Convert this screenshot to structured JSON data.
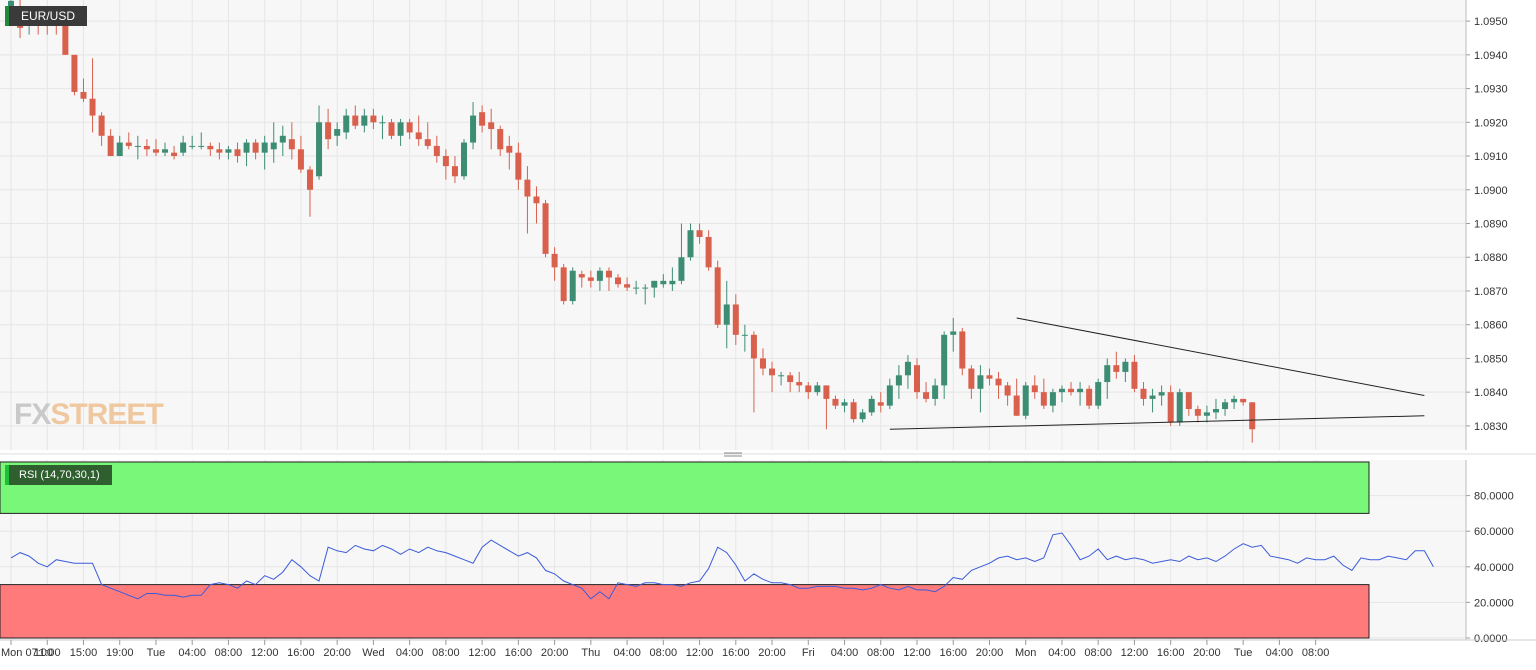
{
  "symbol": "EUR/USD",
  "rsi_label": "RSI (14,70,30,1)",
  "watermark": {
    "part1": "FX",
    "part2": "STREET"
  },
  "colors": {
    "up": "#3d8d74",
    "down": "#d9604c",
    "rsi_line": "#3b5bdb",
    "overbought": "#79f779",
    "oversold": "#ff7b7b",
    "grid": "#e6e6e6",
    "background": "#f7f7f7"
  },
  "price_axis": {
    "ticks": [
      "1.0950",
      "1.0940",
      "1.0930",
      "1.0920",
      "1.0910",
      "1.0900",
      "1.0890",
      "1.0880",
      "1.0870",
      "1.0860",
      "1.0850",
      "1.0840",
      "1.0830"
    ],
    "tick_values": [
      1.095,
      1.094,
      1.093,
      1.092,
      1.091,
      1.09,
      1.089,
      1.088,
      1.087,
      1.086,
      1.085,
      1.084,
      1.083
    ]
  },
  "rsi_axis": {
    "ticks": [
      "80.0000",
      "60.0000",
      "40.0000",
      "20.0000",
      "0.0000"
    ],
    "tick_values": [
      80,
      60,
      40,
      20,
      0
    ]
  },
  "time_axis": {
    "labels": [
      "Mon 07:00",
      "11:00",
      "15:00",
      "19:00",
      "Tue",
      "04:00",
      "08:00",
      "12:00",
      "16:00",
      "20:00",
      "Wed",
      "04:00",
      "08:00",
      "12:00",
      "16:00",
      "20:00",
      "Thu",
      "04:00",
      "08:00",
      "12:00",
      "16:00",
      "20:00",
      "Fri",
      "04:00",
      "08:00",
      "12:00",
      "16:00",
      "20:00",
      "Mon",
      "04:00",
      "08:00",
      "12:00",
      "16:00",
      "20:00",
      "Tue",
      "04:00",
      "08:00"
    ],
    "bar_index": [
      0,
      4,
      8,
      12,
      16,
      20,
      24,
      28,
      32,
      36,
      40,
      44,
      48,
      52,
      56,
      60,
      64,
      68,
      72,
      76,
      80,
      84,
      88,
      92,
      96,
      100,
      104,
      108,
      112,
      116,
      120,
      124,
      128,
      132,
      136,
      140,
      144
    ]
  },
  "chart_data": [
    {
      "type": "candlestick",
      "title": "EUR/USD",
      "ylim": [
        1.0823,
        1.0957
      ],
      "candles": [
        [
          1.0954,
          1.0957,
          1.095,
          1.0956
        ],
        [
          1.0952,
          1.0957,
          1.0945,
          1.0948
        ],
        [
          1.095,
          1.0953,
          1.0946,
          1.0951
        ],
        [
          1.0951,
          1.0953,
          1.0946,
          1.0949
        ],
        [
          1.0951,
          1.0952,
          1.0946,
          1.095
        ],
        [
          1.095,
          1.0953,
          1.0946,
          1.0949
        ],
        [
          1.0949,
          1.0952,
          1.094,
          1.094
        ],
        [
          1.094,
          1.094,
          1.0928,
          1.0929
        ],
        [
          1.0929,
          1.0933,
          1.0926,
          1.0927
        ],
        [
          1.0927,
          1.0939,
          1.0917,
          1.0922
        ],
        [
          1.0922,
          1.0923,
          1.0913,
          1.0916
        ],
        [
          1.0916,
          1.0918,
          1.091,
          1.091
        ],
        [
          1.091,
          1.0916,
          1.091,
          1.0914
        ],
        [
          1.0914,
          1.0917,
          1.0912,
          1.0913
        ],
        [
          1.0913,
          1.0916,
          1.0909,
          1.0913
        ],
        [
          1.0913,
          1.0915,
          1.091,
          1.0912
        ],
        [
          1.0912,
          1.0915,
          1.091,
          1.0911
        ],
        [
          1.0911,
          1.0914,
          1.091,
          1.0912
        ],
        [
          1.0911,
          1.0913,
          1.0909,
          1.091
        ],
        [
          1.0911,
          1.0916,
          1.091,
          1.0914
        ],
        [
          1.0913,
          1.0916,
          1.0912,
          1.0913
        ],
        [
          1.0913,
          1.0917,
          1.0912,
          1.0913
        ],
        [
          1.0913,
          1.0914,
          1.091,
          1.0912
        ],
        [
          1.0912,
          1.0914,
          1.0909,
          1.0911
        ],
        [
          1.0911,
          1.0913,
          1.0909,
          1.0912
        ],
        [
          1.0912,
          1.0914,
          1.0908,
          1.091
        ],
        [
          1.0911,
          1.0915,
          1.0907,
          1.0914
        ],
        [
          1.0914,
          1.0915,
          1.0909,
          1.0911
        ],
        [
          1.0911,
          1.0916,
          1.0906,
          1.0914
        ],
        [
          1.0912,
          1.092,
          1.0908,
          1.0914
        ],
        [
          1.0914,
          1.0919,
          1.091,
          1.0916
        ],
        [
          1.0915,
          1.092,
          1.0909,
          1.0912
        ],
        [
          1.0912,
          1.0916,
          1.0905,
          1.0906
        ],
        [
          1.0906,
          1.0907,
          1.0892,
          1.09
        ],
        [
          1.0904,
          1.0925,
          1.0903,
          1.092
        ],
        [
          1.092,
          1.0924,
          1.0912,
          1.0915
        ],
        [
          1.0916,
          1.092,
          1.0913,
          1.0918
        ],
        [
          1.0917,
          1.0924,
          1.0915,
          1.0922
        ],
        [
          1.0922,
          1.0925,
          1.0918,
          1.0919
        ],
        [
          1.0919,
          1.0924,
          1.0917,
          1.0922
        ],
        [
          1.0922,
          1.0924,
          1.0918,
          1.092
        ],
        [
          1.092,
          1.0922,
          1.0915,
          1.092
        ],
        [
          1.092,
          1.0921,
          1.0915,
          1.0916
        ],
        [
          1.0916,
          1.0921,
          1.0913,
          1.092
        ],
        [
          1.092,
          1.0921,
          1.0915,
          1.0917
        ],
        [
          1.0917,
          1.0922,
          1.0913,
          1.0915
        ],
        [
          1.0915,
          1.092,
          1.0912,
          1.0913
        ],
        [
          1.0913,
          1.0916,
          1.0908,
          1.091
        ],
        [
          1.091,
          1.0912,
          1.0903,
          1.0907
        ],
        [
          1.0907,
          1.091,
          1.0902,
          1.0904
        ],
        [
          1.0904,
          1.0915,
          1.0903,
          1.0914
        ],
        [
          1.0914,
          1.0926,
          1.0912,
          1.0922
        ],
        [
          1.0923,
          1.0925,
          1.0917,
          1.0919
        ],
        [
          1.092,
          1.0924,
          1.0912,
          1.0918
        ],
        [
          1.0918,
          1.0919,
          1.091,
          1.0912
        ],
        [
          1.0913,
          1.0916,
          1.0906,
          1.0911
        ],
        [
          1.0911,
          1.0914,
          1.09,
          1.0903
        ],
        [
          1.0903,
          1.0907,
          1.0887,
          1.0898
        ],
        [
          1.0898,
          1.0901,
          1.089,
          1.0896
        ],
        [
          1.0896,
          1.0897,
          1.088,
          1.0881
        ],
        [
          1.0881,
          1.0883,
          1.0873,
          1.0877
        ],
        [
          1.0877,
          1.0878,
          1.0866,
          1.0867
        ],
        [
          1.0867,
          1.0877,
          1.0866,
          1.0876
        ],
        [
          1.0875,
          1.0876,
          1.0871,
          1.0874
        ],
        [
          1.0874,
          1.0876,
          1.0871,
          1.0873
        ],
        [
          1.0873,
          1.0877,
          1.087,
          1.0876
        ],
        [
          1.0876,
          1.0877,
          1.087,
          1.0874
        ],
        [
          1.0874,
          1.0875,
          1.0871,
          1.0872
        ],
        [
          1.0872,
          1.0874,
          1.087,
          1.0871
        ],
        [
          1.0871,
          1.0873,
          1.0869,
          1.0871
        ],
        [
          1.0871,
          1.0872,
          1.0866,
          1.0871
        ],
        [
          1.0871,
          1.0873,
          1.0868,
          1.0873
        ],
        [
          1.0872,
          1.0875,
          1.0871,
          1.0873
        ],
        [
          1.0872,
          1.0877,
          1.087,
          1.0873
        ],
        [
          1.0873,
          1.089,
          1.0872,
          1.088
        ],
        [
          1.088,
          1.089,
          1.0879,
          1.0888
        ],
        [
          1.0888,
          1.089,
          1.0884,
          1.0886
        ],
        [
          1.0886,
          1.0888,
          1.0876,
          1.0877
        ],
        [
          1.0877,
          1.0879,
          1.0859,
          1.086
        ],
        [
          1.086,
          1.0873,
          1.0853,
          1.0866
        ],
        [
          1.0866,
          1.0869,
          1.0854,
          1.0857
        ],
        [
          1.0857,
          1.086,
          1.0852,
          1.0857
        ],
        [
          1.0857,
          1.0858,
          1.0834,
          1.085
        ],
        [
          1.085,
          1.0853,
          1.0845,
          1.0847
        ],
        [
          1.0847,
          1.0849,
          1.084,
          1.0845
        ],
        [
          1.0845,
          1.0846,
          1.0842,
          1.0845
        ],
        [
          1.0845,
          1.0846,
          1.084,
          1.0843
        ],
        [
          1.0843,
          1.0846,
          1.084,
          1.0842
        ],
        [
          1.0842,
          1.0843,
          1.0838,
          1.084
        ],
        [
          1.084,
          1.0843,
          1.0839,
          1.0842
        ],
        [
          1.0842,
          1.0842,
          1.0829,
          1.0838
        ],
        [
          1.0838,
          1.0839,
          1.0835,
          1.0836
        ],
        [
          1.0836,
          1.0838,
          1.0834,
          1.0837
        ],
        [
          1.0837,
          1.0838,
          1.0831,
          1.0832
        ],
        [
          1.0832,
          1.0835,
          1.0831,
          1.0834
        ],
        [
          1.0834,
          1.0839,
          1.0833,
          1.0838
        ],
        [
          1.0837,
          1.084,
          1.0834,
          1.0836
        ],
        [
          1.0836,
          1.0844,
          1.0835,
          1.0842
        ],
        [
          1.0842,
          1.0848,
          1.0838,
          1.0845
        ],
        [
          1.0845,
          1.0851,
          1.0841,
          1.0849
        ],
        [
          1.0848,
          1.085,
          1.0838,
          1.084
        ],
        [
          1.084,
          1.0843,
          1.0837,
          1.0838
        ],
        [
          1.0838,
          1.0844,
          1.0836,
          1.0842
        ],
        [
          1.0842,
          1.0858,
          1.0838,
          1.0857
        ],
        [
          1.0857,
          1.0862,
          1.0852,
          1.0858
        ],
        [
          1.0858,
          1.0859,
          1.0845,
          1.0847
        ],
        [
          1.0847,
          1.0848,
          1.0838,
          1.0841
        ],
        [
          1.0841,
          1.0848,
          1.0834,
          1.0845
        ],
        [
          1.0845,
          1.0847,
          1.0842,
          1.0844
        ],
        [
          1.0844,
          1.0846,
          1.0838,
          1.0842
        ],
        [
          1.0842,
          1.0843,
          1.0836,
          1.0839
        ],
        [
          1.0839,
          1.0844,
          1.0833,
          1.0833
        ],
        [
          1.0833,
          1.0843,
          1.0832,
          1.0842
        ],
        [
          1.0842,
          1.0845,
          1.0838,
          1.084
        ],
        [
          1.084,
          1.0844,
          1.0835,
          1.0836
        ],
        [
          1.0836,
          1.0841,
          1.0834,
          1.084
        ],
        [
          1.084,
          1.0842,
          1.0837,
          1.0841
        ],
        [
          1.0841,
          1.0843,
          1.0839,
          1.084
        ],
        [
          1.084,
          1.0843,
          1.0836,
          1.0841
        ],
        [
          1.0841,
          1.0842,
          1.0835,
          1.0836
        ],
        [
          1.0836,
          1.0844,
          1.0835,
          1.0843
        ],
        [
          1.0843,
          1.085,
          1.0838,
          1.0848
        ],
        [
          1.0848,
          1.0852,
          1.0844,
          1.0846
        ],
        [
          1.0846,
          1.085,
          1.0843,
          1.0849
        ],
        [
          1.0849,
          1.0851,
          1.084,
          1.0841
        ],
        [
          1.0841,
          1.0843,
          1.0836,
          1.0838
        ],
        [
          1.0838,
          1.0841,
          1.0834,
          1.0839
        ],
        [
          1.0839,
          1.0842,
          1.0836,
          1.084
        ],
        [
          1.084,
          1.0842,
          1.083,
          1.0831
        ],
        [
          1.0831,
          1.0841,
          1.083,
          1.084
        ],
        [
          1.084,
          1.084,
          1.0833,
          1.0835
        ],
        [
          1.0835,
          1.0836,
          1.0831,
          1.0833
        ],
        [
          1.0833,
          1.0836,
          1.0831,
          1.0834
        ],
        [
          1.0834,
          1.0838,
          1.0832,
          1.0835
        ],
        [
          1.0835,
          1.0838,
          1.0833,
          1.0837
        ],
        [
          1.0837,
          1.0839,
          1.0835,
          1.0838
        ],
        [
          1.0838,
          1.0838,
          1.0836,
          1.0837
        ],
        [
          1.0837,
          1.0837,
          1.0825,
          1.0829
        ]
      ],
      "trendlines": [
        {
          "from": [
            97,
            1.0829
          ],
          "to": [
            156,
            1.0833
          ]
        },
        {
          "from": [
            111,
            1.0862
          ],
          "to": [
            156,
            1.0839
          ]
        }
      ]
    },
    {
      "type": "line",
      "title": "RSI (14,70,30,1)",
      "ylim": [
        0,
        100
      ],
      "overbought": 70,
      "oversold": 30,
      "values": [
        45,
        48,
        46,
        42,
        40,
        44,
        43,
        42,
        42,
        42,
        30,
        28,
        26,
        24,
        22,
        25,
        25,
        24,
        24,
        23,
        24,
        24,
        30,
        31,
        30,
        28,
        32,
        30,
        35,
        33,
        37,
        44,
        40,
        35,
        32,
        51,
        49,
        48,
        52,
        50,
        49,
        52,
        50,
        47,
        50,
        48,
        51,
        49,
        48,
        46,
        44,
        42,
        51,
        55,
        52,
        49,
        46,
        48,
        45,
        38,
        36,
        32,
        30,
        28,
        22,
        26,
        22,
        31,
        30,
        29,
        31,
        31,
        30,
        30,
        29,
        31,
        32,
        39,
        51,
        48,
        41,
        32,
        36,
        33,
        31,
        31,
        30,
        28,
        28,
        29,
        29,
        29,
        28,
        28,
        27,
        28,
        30,
        28,
        27,
        29,
        27,
        27,
        26,
        29,
        34,
        33,
        38,
        40,
        42,
        45,
        46,
        44,
        45,
        43,
        45,
        58,
        59,
        52,
        44,
        46,
        50,
        44,
        46,
        44,
        45,
        44,
        42,
        43,
        44,
        43,
        46,
        44,
        45,
        43,
        46,
        50,
        53,
        51,
        52,
        46,
        45,
        44,
        42,
        45,
        44,
        44,
        46,
        41,
        38,
        45,
        44,
        44,
        46,
        45,
        44,
        49,
        49,
        40
      ]
    }
  ]
}
